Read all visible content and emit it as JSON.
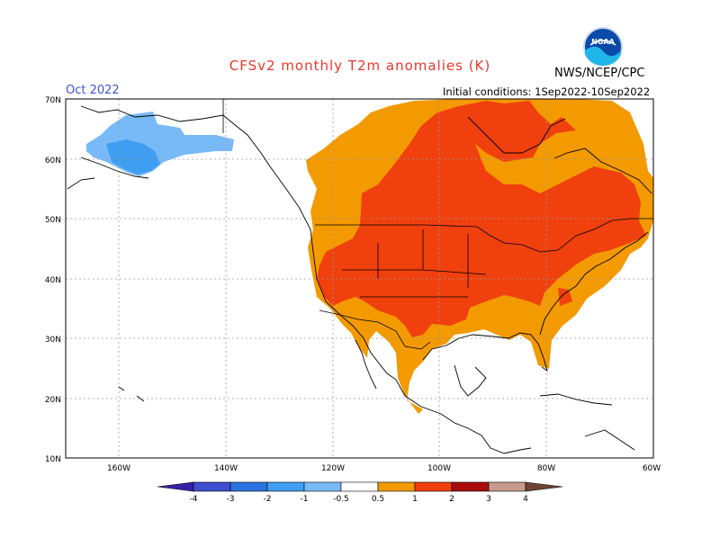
{
  "header": {
    "title": "CFSv2 monthly T2m anomalies (K)",
    "agency": "NWS/NCEP/CPC",
    "month": "Oct 2022",
    "initial_conditions": "Initial conditions: 1Sep2022-10Sep2022",
    "logo_text": "NOAA"
  },
  "axes": {
    "lat_labels": [
      "70N",
      "60N",
      "50N",
      "40N",
      "30N",
      "20N",
      "10N"
    ],
    "lon_labels": [
      "160W",
      "140W",
      "120W",
      "100W",
      "80W",
      "60W"
    ]
  },
  "legend": {
    "labels": [
      "-4",
      "-3",
      "-2",
      "-1",
      "-0.5",
      "0.5",
      "1",
      "2",
      "3",
      "4"
    ],
    "colors": [
      "#3a1fa8",
      "#3f4fd0",
      "#2a73e0",
      "#3f9ef2",
      "#78baf8",
      "#ffffff",
      "#f39a00",
      "#f0400e",
      "#a90c0c",
      "#c89a8e",
      "#6e4438"
    ]
  },
  "colors": {
    "warm_05_1": "#f39a00",
    "warm_1_2": "#f0400e",
    "cool_05_1": "#78baf8",
    "cool_1_2": "#3f9ef2"
  }
}
